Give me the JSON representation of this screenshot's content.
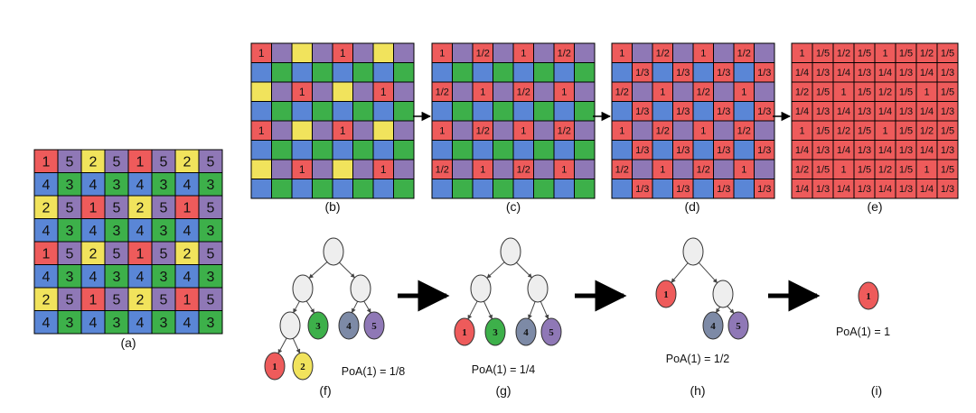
{
  "colors": {
    "red": "#ee5b5b",
    "purple": "#8f78b6",
    "yellow": "#f1e35c",
    "green": "#3db04a",
    "blue": "#5a86d6",
    "node_gray": "#eeeeee",
    "node_slate": "#7d8aa6",
    "grid_line": "#000000"
  },
  "grid_a": {
    "caption": "(a)",
    "rows": [
      [
        "1",
        "5",
        "2",
        "5",
        "1",
        "5",
        "2",
        "5"
      ],
      [
        "4",
        "3",
        "4",
        "3",
        "4",
        "3",
        "4",
        "3"
      ],
      [
        "2",
        "5",
        "1",
        "5",
        "2",
        "5",
        "1",
        "5"
      ],
      [
        "4",
        "3",
        "4",
        "3",
        "4",
        "3",
        "4",
        "3"
      ],
      [
        "1",
        "5",
        "2",
        "5",
        "1",
        "5",
        "2",
        "5"
      ],
      [
        "4",
        "3",
        "4",
        "3",
        "4",
        "3",
        "4",
        "3"
      ],
      [
        "2",
        "5",
        "1",
        "5",
        "2",
        "5",
        "1",
        "5"
      ],
      [
        "4",
        "3",
        "4",
        "3",
        "4",
        "3",
        "4",
        "3"
      ]
    ]
  },
  "grid_b": {
    "caption": "(b)",
    "rows": [
      [
        "1",
        "",
        "",
        "",
        "1",
        "",
        "",
        ""
      ],
      [
        "",
        "",
        "",
        "",
        "",
        "",
        "",
        ""
      ],
      [
        "",
        "",
        "1",
        "",
        "",
        "",
        "1",
        ""
      ],
      [
        "",
        "",
        "",
        "",
        "",
        "",
        "",
        ""
      ],
      [
        "1",
        "",
        "",
        "",
        "1",
        "",
        "",
        ""
      ],
      [
        "",
        "",
        "",
        "",
        "",
        "",
        "",
        ""
      ],
      [
        "",
        "",
        "1",
        "",
        "",
        "",
        "1",
        ""
      ],
      [
        "",
        "",
        "",
        "",
        "",
        "",
        "",
        ""
      ]
    ]
  },
  "grid_c": {
    "caption": "(c)",
    "rows": [
      [
        "1",
        "",
        "1/2",
        "",
        "1",
        "",
        "1/2",
        ""
      ],
      [
        "",
        "",
        "",
        "",
        "",
        "",
        "",
        ""
      ],
      [
        "1/2",
        "",
        "1",
        "",
        "1/2",
        "",
        "1",
        ""
      ],
      [
        "",
        "",
        "",
        "",
        "",
        "",
        "",
        ""
      ],
      [
        "1",
        "",
        "1/2",
        "",
        "1",
        "",
        "1/2",
        ""
      ],
      [
        "",
        "",
        "",
        "",
        "",
        "",
        "",
        ""
      ],
      [
        "1/2",
        "",
        "1",
        "",
        "1/2",
        "",
        "1",
        ""
      ],
      [
        "",
        "",
        "",
        "",
        "",
        "",
        "",
        ""
      ]
    ]
  },
  "grid_d": {
    "caption": "(d)",
    "rows": [
      [
        "1",
        "",
        "1/2",
        "",
        "1",
        "",
        "1/2",
        ""
      ],
      [
        "",
        "1/3",
        "",
        "1/3",
        "",
        "1/3",
        "",
        "1/3"
      ],
      [
        "1/2",
        "",
        "1",
        "",
        "1/2",
        "",
        "1",
        ""
      ],
      [
        "",
        "1/3",
        "",
        "1/3",
        "",
        "1/3",
        "",
        "1/3"
      ],
      [
        "1",
        "",
        "1/2",
        "",
        "1",
        "",
        "1/2",
        ""
      ],
      [
        "",
        "1/3",
        "",
        "1/3",
        "",
        "1/3",
        "",
        "1/3"
      ],
      [
        "1/2",
        "",
        "1",
        "",
        "1/2",
        "",
        "1",
        ""
      ],
      [
        "",
        "1/3",
        "",
        "1/3",
        "",
        "1/3",
        "",
        "1/3"
      ]
    ]
  },
  "grid_e": {
    "caption": "(e)",
    "rows": [
      [
        "1",
        "1/5",
        "1/2",
        "1/5",
        "1",
        "1/5",
        "1/2",
        "1/5"
      ],
      [
        "1/4",
        "1/3",
        "1/4",
        "1/3",
        "1/4",
        "1/3",
        "1/4",
        "1/3"
      ],
      [
        "1/2",
        "1/5",
        "1",
        "1/5",
        "1/2",
        "1/5",
        "1",
        "1/5"
      ],
      [
        "1/4",
        "1/3",
        "1/4",
        "1/3",
        "1/4",
        "1/3",
        "1/4",
        "1/3"
      ],
      [
        "1",
        "1/5",
        "1/2",
        "1/5",
        "1",
        "1/5",
        "1/2",
        "1/5"
      ],
      [
        "1/4",
        "1/3",
        "1/4",
        "1/3",
        "1/4",
        "1/3",
        "1/4",
        "1/3"
      ],
      [
        "1/2",
        "1/5",
        "1",
        "1/5",
        "1/2",
        "1/5",
        "1",
        "1/5"
      ],
      [
        "1/4",
        "1/3",
        "1/4",
        "1/3",
        "1/4",
        "1/3",
        "1/4",
        "1/3"
      ]
    ]
  },
  "trees": {
    "f": {
      "caption": "(f)",
      "poa": "PoA(1) = 1/8",
      "labels": {
        "n3": "3",
        "n4": "4",
        "n5": "5",
        "n1": "1",
        "n2": "2"
      }
    },
    "g": {
      "caption": "(g)",
      "poa": "PoA(1) = 1/4",
      "labels": {
        "n1": "1",
        "n3": "3",
        "n4": "4",
        "n5": "5"
      }
    },
    "h": {
      "caption": "(h)",
      "poa": "PoA(1) = 1/2",
      "labels": {
        "n1": "1",
        "n4": "4",
        "n5": "5"
      }
    },
    "i": {
      "caption": "(i)",
      "poa": "PoA(1) = 1",
      "labels": {
        "n1": "1"
      }
    }
  }
}
